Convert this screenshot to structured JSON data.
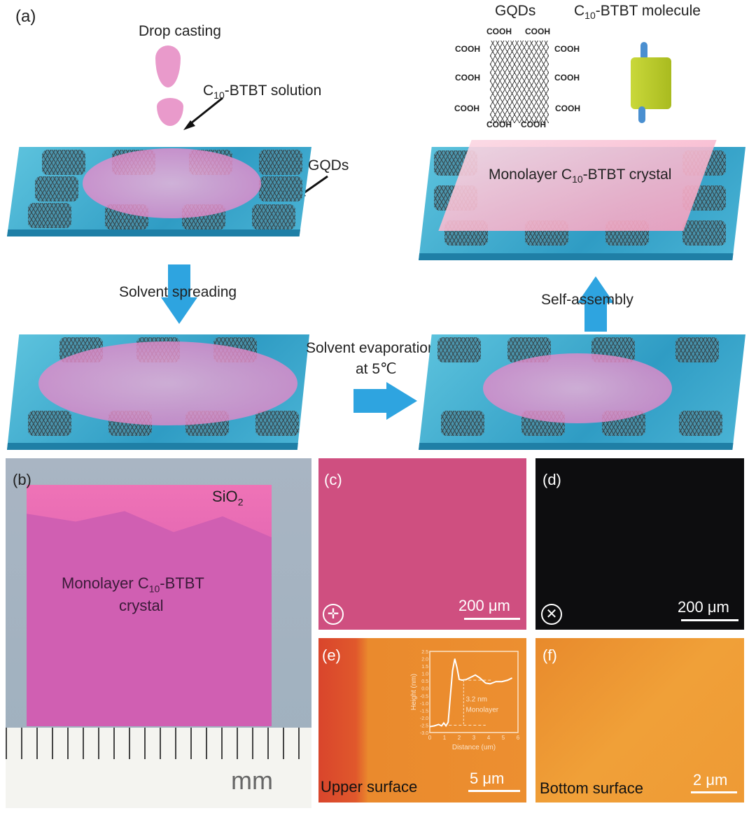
{
  "panel_a": {
    "label": "(a)",
    "drop_casting": "Drop casting",
    "solution_prefix": "C",
    "solution_sub": "10",
    "solution_suffix": "-BTBT solution",
    "gqds_pointer": "GQDs",
    "solvent_spreading": "Solvent spreading",
    "solvent_evaporation_1": "Solvent evaporation",
    "solvent_evaporation_2": "at 5℃",
    "self_assembly": "Self-assembly",
    "monolayer_prefix": "Monolayer C",
    "monolayer_sub": "10",
    "monolayer_suffix": "-BTBT crystal",
    "legend_gqds": "GQDs",
    "legend_molecule_prefix": "C",
    "legend_molecule_sub": "10",
    "legend_molecule_suffix": "-BTBT molecule",
    "cooh": "COOH",
    "colors": {
      "substrate": "#3aaed3",
      "solution": "#e58ac8",
      "arrow": "#2ea4e0",
      "molecule_core": "#b8c92a",
      "molecule_tail": "#4a8fd0"
    }
  },
  "panel_b": {
    "label": "(b)",
    "sio2_prefix": "SiO",
    "sio2_sub": "2",
    "crystal_line1_prefix": "Monolayer C",
    "crystal_sub": "10",
    "crystal_line1_suffix": "-BTBT",
    "crystal_line2": "crystal",
    "ruler_unit": "mm"
  },
  "panel_c": {
    "label": "(c)",
    "scale": "200 μm",
    "icon": "crosshair-polarizer-icon",
    "color": "#cf4f80"
  },
  "panel_d": {
    "label": "(d)",
    "scale": "200 μm",
    "icon": "crossed-polarizer-icon",
    "color": "#0d0d0f"
  },
  "panel_e": {
    "label": "(e)",
    "caption": "Upper surface",
    "scale": "5 μm",
    "color": "#e98a2c"
  },
  "panel_f": {
    "label": "(f)",
    "caption": "Bottom surface",
    "scale": "2 μm",
    "color": "#ee9a35"
  },
  "chart_data": {
    "type": "line",
    "xlabel": "Distance (um)",
    "ylabel": "Height (nm)",
    "xlim": [
      0,
      6
    ],
    "ylim": [
      -3.0,
      2.5
    ],
    "xticks": [
      0,
      1,
      2,
      3,
      4,
      5,
      6
    ],
    "yticks": [
      "2.5",
      "2.0",
      "1.5",
      "1.0",
      "0.5",
      "0.0",
      "-0.5",
      "-1.0",
      "-1.5",
      "-2.0",
      "-2.5",
      "-3.0"
    ],
    "annotation_1": "3.2 nm",
    "annotation_2": "Monolayer",
    "x": [
      0,
      0.3,
      0.6,
      0.8,
      0.95,
      1.1,
      1.25,
      1.4,
      1.55,
      1.7,
      1.85,
      2.0,
      2.2,
      2.5,
      2.8,
      3.1,
      3.4,
      3.8,
      4.1,
      4.5,
      4.9,
      5.3,
      5.6
    ],
    "y": [
      -2.6,
      -2.55,
      -2.45,
      -2.55,
      -2.35,
      -2.55,
      -2.3,
      -0.5,
      1.2,
      2.0,
      1.4,
      0.6,
      0.55,
      0.6,
      0.75,
      0.9,
      0.7,
      0.35,
      0.3,
      0.45,
      0.45,
      0.55,
      0.7
    ]
  }
}
